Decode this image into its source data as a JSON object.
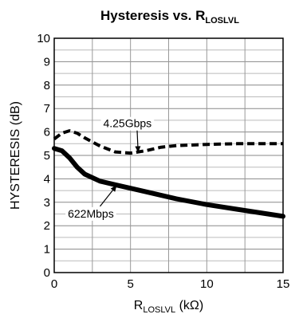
{
  "chart_data": {
    "type": "line",
    "title": {
      "main": "Hysteresis vs. R",
      "sub": "LOSLVL"
    },
    "xlabel": {
      "pre": "R",
      "sub": "LOSLVL",
      "post": " (kΩ)"
    },
    "ylabel": "HYSTERESIS (dB)",
    "xlim": [
      0,
      15
    ],
    "ylim": [
      0,
      10
    ],
    "xticks": [
      0,
      5,
      10,
      15
    ],
    "yticks": [
      0,
      1,
      2,
      3,
      4,
      5,
      6,
      7,
      8,
      9,
      10
    ],
    "x_minor_step": 2.5,
    "y_minor_step": 0.5,
    "grid": true,
    "series": [
      {
        "name": "4.25Gbps",
        "style": "dashed",
        "color": "#000000",
        "points": [
          [
            0,
            5.7
          ],
          [
            0.5,
            5.95
          ],
          [
            1,
            6.05
          ],
          [
            1.5,
            5.95
          ],
          [
            2,
            5.75
          ],
          [
            3,
            5.4
          ],
          [
            4,
            5.15
          ],
          [
            5,
            5.1
          ],
          [
            6,
            5.2
          ],
          [
            7,
            5.35
          ],
          [
            8,
            5.42
          ],
          [
            10,
            5.47
          ],
          [
            12,
            5.5
          ],
          [
            15,
            5.5
          ]
        ]
      },
      {
        "name": "622Mbps",
        "style": "solid",
        "color": "#000000",
        "points": [
          [
            0,
            5.3
          ],
          [
            0.5,
            5.2
          ],
          [
            1,
            4.9
          ],
          [
            1.5,
            4.5
          ],
          [
            2,
            4.2
          ],
          [
            3,
            3.9
          ],
          [
            4,
            3.75
          ],
          [
            5,
            3.6
          ],
          [
            6,
            3.45
          ],
          [
            8,
            3.15
          ],
          [
            10,
            2.9
          ],
          [
            12,
            2.7
          ],
          [
            15,
            2.4
          ]
        ]
      }
    ],
    "annotations": [
      {
        "label": "4.25Gbps",
        "series": "4.25Gbps",
        "text_pos": [
          4.8,
          6.2
        ],
        "arrow_to": [
          5.5,
          5.12
        ]
      },
      {
        "label": "622Mbps",
        "series": "622Mbps",
        "text_pos": [
          2.4,
          2.35
        ],
        "arrow_to": [
          4.1,
          3.73
        ]
      }
    ]
  }
}
